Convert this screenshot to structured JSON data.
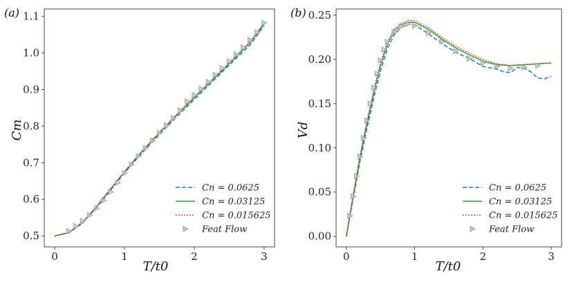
{
  "chart_data": [
    {
      "type": "line",
      "panel_label": "(a)",
      "xlabel": "T/t0",
      "ylabel": "Cm",
      "xlim": [
        -0.15,
        3.15
      ],
      "ylim": [
        0.47,
        1.12
      ],
      "xticks": [
        0,
        1,
        2,
        3
      ],
      "yticks": [
        0.5,
        0.6,
        0.7,
        0.8,
        0.9,
        1.0,
        1.1
      ],
      "ytick_labels": [
        "0.5",
        "0.6",
        "0.7",
        "0.8",
        "0.9",
        "1.0",
        "1.1"
      ],
      "legend_position": "lower-right",
      "series": [
        {
          "name": "Cn = 0.0625",
          "style": "dashed",
          "color": "#1f77b4",
          "x": [
            0,
            0.2,
            0.4,
            0.6,
            0.8,
            1.0,
            1.2,
            1.4,
            1.6,
            1.8,
            2.0,
            2.2,
            2.4,
            2.6,
            2.8,
            3.0
          ],
          "y": [
            0.5,
            0.508,
            0.535,
            0.578,
            0.625,
            0.672,
            0.716,
            0.757,
            0.797,
            0.835,
            0.873,
            0.91,
            0.948,
            0.985,
            1.022,
            1.075
          ]
        },
        {
          "name": "Cn = 0.03125",
          "style": "solid",
          "color": "#2ca02c",
          "x": [
            0,
            0.2,
            0.4,
            0.6,
            0.8,
            1.0,
            1.2,
            1.4,
            1.6,
            1.8,
            2.0,
            2.2,
            2.4,
            2.6,
            2.8,
            3.0
          ],
          "y": [
            0.5,
            0.509,
            0.537,
            0.58,
            0.628,
            0.675,
            0.72,
            0.761,
            0.802,
            0.84,
            0.878,
            0.915,
            0.952,
            0.99,
            1.028,
            1.08
          ]
        },
        {
          "name": "Cn = 0.015625",
          "style": "dotted",
          "color": "#d62728",
          "x": [
            0,
            0.2,
            0.4,
            0.6,
            0.8,
            1.0,
            1.2,
            1.4,
            1.6,
            1.8,
            2.0,
            2.2,
            2.4,
            2.6,
            2.8,
            3.0
          ],
          "y": [
            0.5,
            0.509,
            0.538,
            0.581,
            0.629,
            0.676,
            0.721,
            0.763,
            0.803,
            0.842,
            0.88,
            0.917,
            0.954,
            0.992,
            1.03,
            1.083
          ]
        },
        {
          "name": "Feat Flow",
          "style": "marker",
          "color": "#b5b5b5",
          "x": [
            0.2,
            0.3,
            0.4,
            0.5,
            0.6,
            0.7,
            0.8,
            0.9,
            1.0,
            1.1,
            1.2,
            1.3,
            1.4,
            1.5,
            1.6,
            1.7,
            1.8,
            1.9,
            2.0,
            2.1,
            2.2,
            2.3,
            2.4,
            2.5,
            2.6,
            2.7,
            2.8,
            2.9,
            3.0
          ],
          "y": [
            0.513,
            0.527,
            0.541,
            0.557,
            0.575,
            0.597,
            0.62,
            0.645,
            0.671,
            0.695,
            0.718,
            0.74,
            0.76,
            0.781,
            0.802,
            0.822,
            0.843,
            0.867,
            0.885,
            0.902,
            0.921,
            0.94,
            0.958,
            0.977,
            0.996,
            1.015,
            1.035,
            1.056,
            1.082
          ]
        }
      ]
    },
    {
      "type": "line",
      "panel_label": "(b)",
      "xlabel": "T/t0",
      "ylabel": "Vd",
      "xlim": [
        -0.15,
        3.15
      ],
      "ylim": [
        -0.012,
        0.257
      ],
      "xticks": [
        0,
        1,
        2,
        3
      ],
      "yticks": [
        0.0,
        0.05,
        0.1,
        0.15,
        0.2,
        0.25
      ],
      "ytick_labels": [
        "0.00",
        "0.05",
        "0.10",
        "0.15",
        "0.20",
        "0.25"
      ],
      "legend_position": "lower-right",
      "series": [
        {
          "name": "Cn = 0.0625",
          "style": "dashed",
          "color": "#1f77b4",
          "x": [
            0,
            0.1,
            0.2,
            0.3,
            0.4,
            0.5,
            0.6,
            0.7,
            0.8,
            0.9,
            1.0,
            1.2,
            1.4,
            1.6,
            1.8,
            2.0,
            2.2,
            2.3,
            2.4,
            2.5,
            2.6,
            2.7,
            2.8,
            2.9,
            3.0
          ],
          "y": [
            0.0,
            0.043,
            0.085,
            0.122,
            0.156,
            0.187,
            0.212,
            0.228,
            0.236,
            0.24,
            0.239,
            0.229,
            0.218,
            0.208,
            0.201,
            0.192,
            0.189,
            0.186,
            0.185,
            0.191,
            0.19,
            0.186,
            0.179,
            0.178,
            0.181
          ]
        },
        {
          "name": "Cn = 0.03125",
          "style": "solid",
          "color": "#2ca02c",
          "x": [
            0,
            0.1,
            0.2,
            0.3,
            0.4,
            0.5,
            0.6,
            0.7,
            0.8,
            0.9,
            1.0,
            1.2,
            1.4,
            1.6,
            1.8,
            2.0,
            2.2,
            2.4,
            2.6,
            2.8,
            3.0
          ],
          "y": [
            0.0,
            0.045,
            0.089,
            0.127,
            0.162,
            0.193,
            0.217,
            0.232,
            0.239,
            0.242,
            0.242,
            0.234,
            0.223,
            0.213,
            0.205,
            0.198,
            0.194,
            0.193,
            0.194,
            0.195,
            0.196
          ]
        },
        {
          "name": "Cn = 0.015625",
          "style": "dotted",
          "color": "#d62728",
          "x": [
            0,
            0.1,
            0.2,
            0.3,
            0.4,
            0.5,
            0.6,
            0.7,
            0.8,
            0.9,
            1.0,
            1.2,
            1.4,
            1.6,
            1.8,
            2.0,
            2.2,
            2.4,
            2.6,
            2.8,
            3.0
          ],
          "y": [
            0.0,
            0.047,
            0.091,
            0.13,
            0.165,
            0.196,
            0.22,
            0.234,
            0.241,
            0.244,
            0.244,
            0.236,
            0.225,
            0.215,
            0.207,
            0.2,
            0.195,
            0.193,
            0.194,
            0.195,
            0.196
          ]
        },
        {
          "name": "Feat Flow",
          "style": "marker",
          "color": "#b5b5b5",
          "x": [
            0.05,
            0.1,
            0.15,
            0.2,
            0.25,
            0.3,
            0.35,
            0.4,
            0.45,
            0.5,
            0.55,
            0.6,
            0.7,
            0.8,
            0.9,
            1.0,
            1.2,
            1.4,
            1.6,
            1.8,
            2.0,
            2.2,
            2.4,
            2.6,
            2.8
          ],
          "y": [
            0.023,
            0.045,
            0.068,
            0.09,
            0.111,
            0.131,
            0.15,
            0.168,
            0.184,
            0.199,
            0.211,
            0.22,
            0.231,
            0.237,
            0.24,
            0.238,
            0.23,
            0.22,
            0.209,
            0.201,
            0.196,
            0.192,
            0.19,
            0.191,
            0.193
          ]
        }
      ]
    }
  ]
}
